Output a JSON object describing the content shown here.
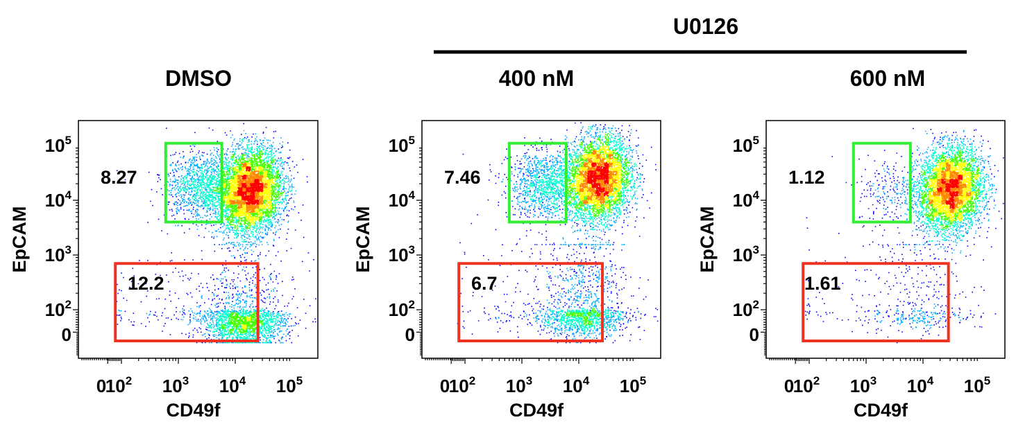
{
  "treatment_label": "U0126",
  "chart_data": [
    {
      "type": "scatter",
      "subtype": "flow cytometry density dot plot",
      "title": "DMSO",
      "xlabel": "CD49f",
      "ylabel": "EpCAM",
      "x_scale": "biexponential (log above 10^2)",
      "y_scale": "biexponential (log above 10^2)",
      "x_ticks": [
        {
          "base": "0",
          "exp": ""
        },
        {
          "base": "10",
          "exp": "2"
        },
        {
          "base": "10",
          "exp": "3"
        },
        {
          "base": "10",
          "exp": "4"
        },
        {
          "base": "10",
          "exp": "5"
        }
      ],
      "y_ticks": [
        {
          "base": "0",
          "exp": ""
        },
        {
          "base": "10",
          "exp": "2"
        },
        {
          "base": "10",
          "exp": "3"
        },
        {
          "base": "10",
          "exp": "4"
        },
        {
          "base": "10",
          "exp": "5"
        }
      ],
      "xlim": [
        -30,
        200000
      ],
      "ylim": [
        -30,
        200000
      ],
      "gates": [
        {
          "name": "green",
          "color": "#33ee33",
          "value": "8.27",
          "x_range": [
            600,
            5800
          ],
          "y_range": [
            4000,
            110000
          ]
        },
        {
          "name": "red",
          "color": "#ee3322",
          "value": "12.2",
          "x_range": [
            60,
            25000
          ],
          "y_range": [
            -25,
            700
          ]
        }
      ],
      "populations": [
        {
          "type": "main",
          "center": [
            18000,
            15000
          ],
          "n": 9000
        },
        {
          "type": "green gate",
          "center": [
            2600,
            18000
          ],
          "n": 1300
        },
        {
          "type": "neg tail",
          "center": [
            14000,
            50
          ],
          "n": 2200
        },
        {
          "type": "sparse",
          "center": [
            3000,
            100
          ],
          "n": 300
        }
      ]
    },
    {
      "type": "scatter",
      "subtype": "flow cytometry density dot plot",
      "title": "400 nM",
      "xlabel": "CD49f",
      "ylabel": "EpCAM",
      "x_scale": "biexponential (log above 10^2)",
      "y_scale": "biexponential (log above 10^2)",
      "x_ticks": [
        {
          "base": "0",
          "exp": ""
        },
        {
          "base": "10",
          "exp": "2"
        },
        {
          "base": "10",
          "exp": "3"
        },
        {
          "base": "10",
          "exp": "4"
        },
        {
          "base": "10",
          "exp": "5"
        }
      ],
      "y_ticks": [
        {
          "base": "0",
          "exp": ""
        },
        {
          "base": "10",
          "exp": "2"
        },
        {
          "base": "10",
          "exp": "3"
        },
        {
          "base": "10",
          "exp": "4"
        },
        {
          "base": "10",
          "exp": "5"
        }
      ],
      "xlim": [
        -30,
        200000
      ],
      "ylim": [
        -30,
        200000
      ],
      "gates": [
        {
          "name": "green",
          "color": "#33ee33",
          "value": "7.46",
          "x_range": [
            600,
            6000
          ],
          "y_range": [
            4000,
            110000
          ]
        },
        {
          "name": "red",
          "color": "#ee3322",
          "value": "6.7",
          "x_range": [
            60,
            26000
          ],
          "y_range": [
            -25,
            700
          ]
        }
      ],
      "populations": [
        {
          "type": "main",
          "center": [
            22000,
            25000
          ],
          "n": 9000
        },
        {
          "type": "green gate",
          "center": [
            2500,
            20000
          ],
          "n": 1200
        },
        {
          "type": "neg tail",
          "center": [
            12000,
            80
          ],
          "n": 1500
        },
        {
          "type": "sparse",
          "center": [
            3000,
            100
          ],
          "n": 300
        }
      ]
    },
    {
      "type": "scatter",
      "subtype": "flow cytometry density dot plot",
      "title": "600 nM",
      "xlabel": "CD49f",
      "ylabel": "EpCAM",
      "x_scale": "biexponential (log above 10^2)",
      "y_scale": "biexponential (log above 10^2)",
      "x_ticks": [
        {
          "base": "0",
          "exp": ""
        },
        {
          "base": "10",
          "exp": "2"
        },
        {
          "base": "10",
          "exp": "3"
        },
        {
          "base": "10",
          "exp": "4"
        },
        {
          "base": "10",
          "exp": "5"
        }
      ],
      "y_ticks": [
        {
          "base": "0",
          "exp": ""
        },
        {
          "base": "10",
          "exp": "2"
        },
        {
          "base": "10",
          "exp": "3"
        },
        {
          "base": "10",
          "exp": "4"
        },
        {
          "base": "10",
          "exp": "5"
        }
      ],
      "xlim": [
        -30,
        200000
      ],
      "ylim": [
        -30,
        200000
      ],
      "gates": [
        {
          "name": "green",
          "color": "#33ee33",
          "value": "1.12",
          "x_range": [
            600,
            6000
          ],
          "y_range": [
            4000,
            110000
          ]
        },
        {
          "name": "red",
          "color": "#ee3322",
          "value": "1.61",
          "x_range": [
            60,
            28000
          ],
          "y_range": [
            -25,
            700
          ]
        }
      ],
      "populations": [
        {
          "type": "main",
          "center": [
            30000,
            16000
          ],
          "n": 10000
        },
        {
          "type": "green gate",
          "center": [
            3000,
            15000
          ],
          "n": 250
        },
        {
          "type": "neg tail",
          "center": [
            8000,
            100
          ],
          "n": 250
        },
        {
          "type": "sparse",
          "center": [
            3000,
            100
          ],
          "n": 250
        }
      ]
    }
  ],
  "colors": {
    "density_scale": [
      "#0000ff",
      "#00aaff",
      "#00ffcc",
      "#44ff00",
      "#ffff00",
      "#ff8800",
      "#ff0000"
    ],
    "gate_green": "#33ee33",
    "gate_red": "#ee3322"
  }
}
